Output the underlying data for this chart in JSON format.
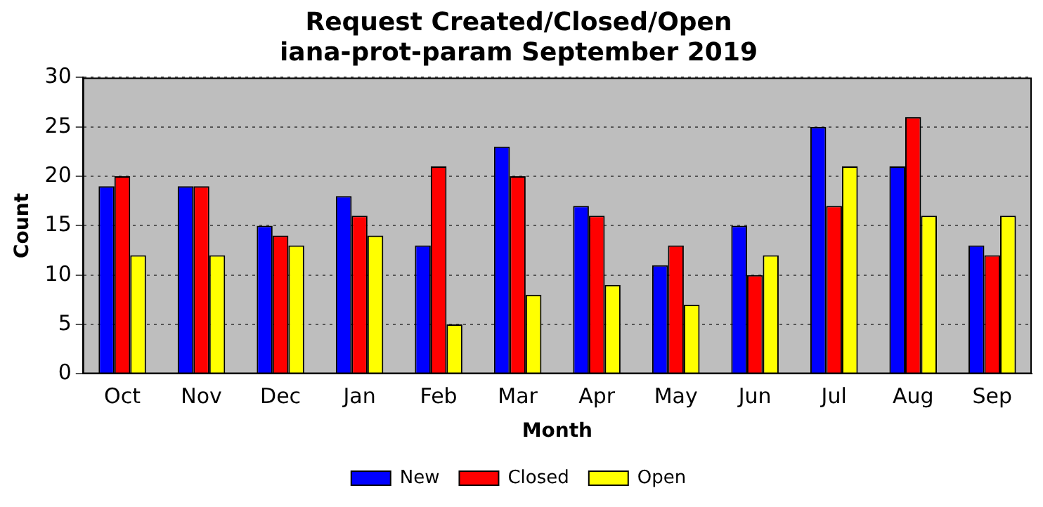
{
  "chart_data": {
    "type": "bar",
    "title": "Request Created/Closed/Open",
    "subtitle": "iana-prot-param September 2019",
    "xlabel": "Month",
    "ylabel": "Count",
    "categories": [
      "Oct",
      "Nov",
      "Dec",
      "Jan",
      "Feb",
      "Mar",
      "Apr",
      "May",
      "Jun",
      "Jul",
      "Aug",
      "Sep"
    ],
    "series": [
      {
        "name": "New",
        "color": "#0000ff",
        "values": [
          19,
          19,
          15,
          18,
          13,
          23,
          17,
          11,
          15,
          25,
          21,
          13
        ]
      },
      {
        "name": "Closed",
        "color": "#ff0000",
        "values": [
          20,
          19,
          14,
          16,
          21,
          20,
          16,
          13,
          10,
          17,
          26,
          12
        ]
      },
      {
        "name": "Open",
        "color": "#ffff00",
        "values": [
          12,
          12,
          13,
          14,
          5,
          8,
          9,
          7,
          12,
          21,
          16,
          16
        ]
      }
    ],
    "ylim": [
      0,
      30
    ],
    "yticks": [
      0,
      5,
      10,
      15,
      20,
      25,
      30
    ],
    "grid": "y",
    "legend": "bottom"
  }
}
